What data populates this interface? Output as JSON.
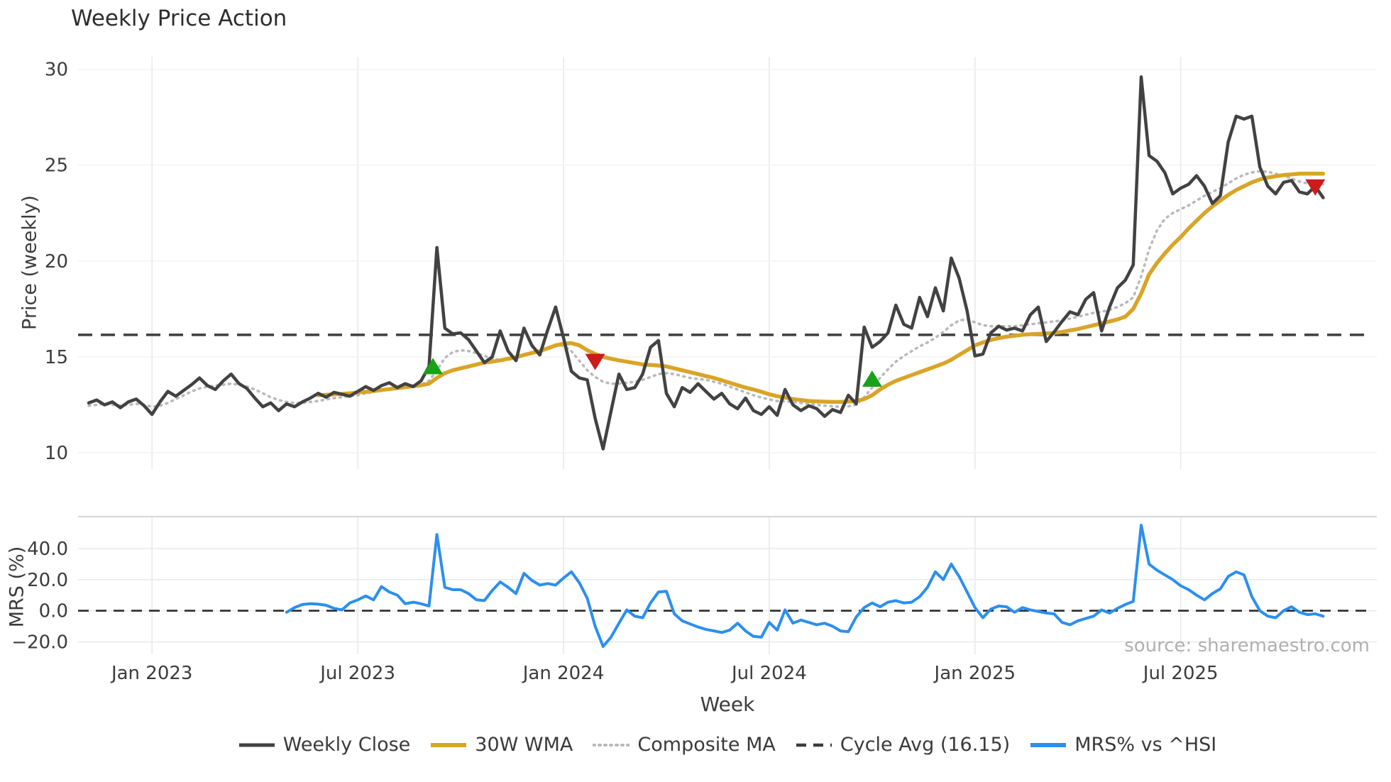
{
  "figure": {
    "title": "Weekly Price Action",
    "x_axis_label": "Week",
    "price_axis_label": "Price (weekly)",
    "mrs_axis_label": "MRS (%)",
    "source_note": "source: sharemaestro.com"
  },
  "colors": {
    "weekly_close": "#424242",
    "wma30": "#d9a427",
    "composite_ma": "#b9b9b9",
    "cycle_avg": "#3d3d3d",
    "mrs": "#2b8fef",
    "zero_line": "#222222",
    "buy_marker": "#17a217",
    "sell_marker": "#cd1a1a",
    "grid": "#e8e8f0",
    "grid_faint": "#f2f2f7",
    "separator": "#c9c9c9",
    "text": "#3c3c3c",
    "source_text": "#b0b0b3"
  },
  "legend": [
    {
      "label": "Weekly Close",
      "key": "weekly_close",
      "color": "#424242",
      "style": "solid"
    },
    {
      "label": "30W WMA",
      "key": "wma30",
      "color": "#d9a427",
      "style": "solid-thick"
    },
    {
      "label": "Composite MA",
      "key": "composite_ma",
      "color": "#b9b9b9",
      "style": "dotted"
    },
    {
      "label": "Cycle Avg (16.15)",
      "key": "cycle_avg",
      "color": "#3d3d3d",
      "style": "dashed"
    },
    {
      "label": "MRS% vs ^HSI",
      "key": "mrs",
      "color": "#2b8fef",
      "style": "solid-thick"
    }
  ],
  "chart_data": {
    "type": "line",
    "title": "Weekly Price Action",
    "xlabel": "Week",
    "x_unit": "weeks from Nov 2022",
    "x_ticks": [
      {
        "label": "Jan 2023",
        "week": 8
      },
      {
        "label": "Jul 2023",
        "week": 34
      },
      {
        "label": "Jan 2024",
        "week": 60
      },
      {
        "label": "Jul 2024",
        "week": 86
      },
      {
        "label": "Jan 2025",
        "week": 112
      },
      {
        "label": "Jul 2025",
        "week": 138
      }
    ],
    "price_panel": {
      "ylabel": "Price (weekly)",
      "ylim": [
        9.15,
        30.65
      ],
      "yticks": [
        {
          "label": "30",
          "value": 30
        },
        {
          "label": "25",
          "value": 25
        },
        {
          "label": "20",
          "value": 20
        },
        {
          "label": "15",
          "value": 15
        },
        {
          "label": "10",
          "value": 10
        }
      ],
      "series": [
        {
          "key": "cycle_avg",
          "name": "Cycle Avg (16.15)",
          "constant": 16.15
        },
        {
          "key": "composite_ma",
          "name": "Composite MA",
          "start_week": 0,
          "values": [
            12.45,
            12.5,
            12.55,
            12.5,
            12.45,
            12.5,
            12.55,
            12.5,
            12.4,
            12.45,
            12.6,
            12.8,
            13.0,
            13.2,
            13.35,
            13.45,
            13.5,
            13.55,
            13.6,
            13.55,
            13.45,
            13.3,
            13.1,
            12.9,
            12.75,
            12.65,
            12.6,
            12.6,
            12.65,
            12.7,
            12.78,
            12.85,
            12.9,
            12.95,
            13.0,
            13.1,
            13.17,
            13.25,
            13.3,
            13.35,
            13.4,
            13.45,
            13.55,
            13.75,
            14.3,
            14.95,
            15.25,
            15.35,
            15.3,
            15.2,
            15.05,
            14.9,
            14.85,
            14.85,
            14.95,
            15.1,
            15.25,
            15.3,
            15.4,
            15.55,
            15.6,
            15.3,
            14.8,
            14.3,
            13.95,
            13.7,
            13.6,
            13.6,
            13.65,
            13.7,
            13.8,
            13.95,
            14.1,
            14.15,
            14.1,
            14.0,
            13.9,
            13.85,
            13.8,
            13.7,
            13.6,
            13.45,
            13.3,
            13.15,
            13.0,
            12.88,
            12.78,
            12.7,
            12.68,
            12.65,
            12.6,
            12.55,
            12.5,
            12.45,
            12.42,
            12.4,
            12.42,
            12.5,
            12.9,
            13.4,
            13.9,
            14.35,
            14.75,
            15.05,
            15.3,
            15.55,
            15.75,
            16.0,
            16.3,
            16.65,
            16.9,
            16.95,
            16.8,
            16.65,
            16.6,
            16.6,
            16.6,
            16.6,
            16.65,
            16.7,
            16.75,
            16.8,
            16.85,
            16.9,
            17.0,
            17.1,
            17.2,
            17.3,
            17.35,
            17.45,
            17.6,
            17.8,
            18.1,
            19.2,
            20.6,
            21.6,
            22.2,
            22.5,
            22.7,
            22.9,
            23.15,
            23.4,
            23.6,
            23.8,
            24.05,
            24.3,
            24.5,
            24.62,
            24.68,
            24.65,
            24.55,
            24.45,
            24.3,
            24.15,
            24.05,
            24.0,
            24.0
          ]
        },
        {
          "key": "wma30",
          "name": "30W WMA",
          "start_week": 29,
          "values": [
            13.0,
            13.02,
            13.05,
            13.07,
            13.1,
            13.15,
            13.18,
            13.22,
            13.27,
            13.32,
            13.37,
            13.42,
            13.47,
            13.52,
            13.6,
            13.9,
            14.15,
            14.3,
            14.4,
            14.5,
            14.6,
            14.7,
            14.75,
            14.82,
            14.9,
            14.98,
            15.1,
            15.2,
            15.3,
            15.45,
            15.6,
            15.68,
            15.72,
            15.6,
            15.35,
            15.15,
            15.0,
            14.9,
            14.82,
            14.75,
            14.68,
            14.6,
            14.58,
            14.55,
            14.5,
            14.4,
            14.3,
            14.2,
            14.1,
            14.0,
            13.9,
            13.78,
            13.65,
            13.52,
            13.4,
            13.3,
            13.18,
            13.05,
            12.95,
            12.88,
            12.8,
            12.75,
            12.7,
            12.68,
            12.66,
            12.65,
            12.65,
            12.67,
            12.7,
            12.8,
            13.0,
            13.3,
            13.55,
            13.75,
            13.9,
            14.05,
            14.2,
            14.35,
            14.5,
            14.65,
            14.85,
            15.1,
            15.35,
            15.6,
            15.75,
            15.88,
            15.98,
            16.05,
            16.1,
            16.15,
            16.18,
            16.2,
            16.22,
            16.25,
            16.3,
            16.38,
            16.45,
            16.55,
            16.65,
            16.75,
            16.85,
            16.95,
            17.1,
            17.5,
            18.3,
            19.3,
            19.9,
            20.4,
            20.85,
            21.25,
            21.7,
            22.1,
            22.5,
            22.85,
            23.15,
            23.45,
            23.7,
            23.9,
            24.1,
            24.25,
            24.35,
            24.42,
            24.48,
            24.52,
            24.55,
            24.55,
            24.55,
            24.55
          ]
        },
        {
          "key": "weekly_close",
          "name": "Weekly Close",
          "start_week": 0,
          "values": [
            12.6,
            12.75,
            12.5,
            12.65,
            12.35,
            12.65,
            12.8,
            12.45,
            12.0,
            12.65,
            13.2,
            12.95,
            13.25,
            13.55,
            13.9,
            13.5,
            13.3,
            13.75,
            14.1,
            13.6,
            13.35,
            12.85,
            12.4,
            12.6,
            12.2,
            12.55,
            12.4,
            12.65,
            12.85,
            13.1,
            12.9,
            13.15,
            13.05,
            12.95,
            13.2,
            13.45,
            13.25,
            13.5,
            13.65,
            13.4,
            13.6,
            13.45,
            13.75,
            14.5,
            20.7,
            16.5,
            16.2,
            16.25,
            15.9,
            15.3,
            14.7,
            15.0,
            16.35,
            15.3,
            14.8,
            16.5,
            15.6,
            15.1,
            16.4,
            17.6,
            16.0,
            14.25,
            13.9,
            13.8,
            11.8,
            10.2,
            12.15,
            14.1,
            13.3,
            13.4,
            14.1,
            15.5,
            15.85,
            13.1,
            12.4,
            13.4,
            13.15,
            13.6,
            13.2,
            12.8,
            13.1,
            12.55,
            12.3,
            12.85,
            12.2,
            12.0,
            12.4,
            11.95,
            13.3,
            12.5,
            12.2,
            12.45,
            12.3,
            11.9,
            12.25,
            12.1,
            13.0,
            12.55,
            16.55,
            15.5,
            15.8,
            16.25,
            17.7,
            16.7,
            16.5,
            18.1,
            17.1,
            18.6,
            17.4,
            20.15,
            19.1,
            17.4,
            15.05,
            15.15,
            16.25,
            16.6,
            16.4,
            16.5,
            16.35,
            17.2,
            17.6,
            15.8,
            16.3,
            16.85,
            17.35,
            17.2,
            18.0,
            18.35,
            16.35,
            17.6,
            18.6,
            19.0,
            19.8,
            29.6,
            25.5,
            25.2,
            24.6,
            23.5,
            23.8,
            24.0,
            24.45,
            23.9,
            23.0,
            23.4,
            26.2,
            27.55,
            27.4,
            27.55,
            24.9,
            23.9,
            23.5,
            24.1,
            24.2,
            23.6,
            23.5,
            23.9,
            23.3
          ]
        }
      ],
      "markers": [
        {
          "week": 43.5,
          "price": 14.5,
          "type": "buy"
        },
        {
          "week": 64,
          "price": 14.75,
          "type": "sell"
        },
        {
          "week": 99,
          "price": 13.85,
          "type": "buy"
        },
        {
          "week": 155,
          "price": 23.85,
          "type": "sell"
        }
      ]
    },
    "mrs_panel": {
      "ylabel": "MRS (%)",
      "ylim": [
        -28,
        60.5
      ],
      "zero_line": 0,
      "yticks": [
        {
          "label": "40.0",
          "value": 40
        },
        {
          "label": "20.0",
          "value": 20
        },
        {
          "label": "0.0",
          "value": 0
        },
        {
          "label": "−20.0",
          "value": -20
        }
      ],
      "series": [
        {
          "key": "mrs",
          "name": "MRS% vs ^HSI",
          "start_week": 25,
          "values": [
            -1,
            2,
            4,
            4.5,
            4.2,
            3.5,
            1.5,
            0.5,
            5,
            7,
            9.5,
            7,
            15.5,
            12,
            10,
            4.5,
            5.5,
            4.5,
            3,
            49,
            15,
            13.5,
            13.5,
            11,
            7,
            6.5,
            13,
            18.5,
            15,
            11,
            24,
            19.5,
            16.5,
            17.5,
            16.5,
            21,
            25,
            18,
            8,
            -10,
            -23,
            -17,
            -8,
            0.5,
            -3.5,
            -4.5,
            5,
            12,
            12.5,
            -2,
            -6.5,
            -8.5,
            -10.5,
            -12,
            -13,
            -14,
            -12.5,
            -8,
            -13,
            -16.5,
            -17,
            -7.5,
            -12.5,
            0.5,
            -8,
            -6,
            -7.5,
            -9,
            -8,
            -10,
            -13,
            -13.5,
            -4,
            2,
            5,
            2.5,
            5.5,
            6.5,
            5,
            5.5,
            9,
            15,
            25,
            20,
            30,
            22,
            12,
            2,
            -4.5,
            1,
            3,
            2.5,
            -1,
            2,
            0.5,
            -0.5,
            -1.5,
            -2,
            -7.5,
            -9,
            -6.5,
            -5,
            -3.5,
            0.5,
            -1.5,
            1.5,
            4,
            6,
            55,
            30,
            26,
            23,
            20,
            16,
            13.5,
            10,
            7,
            11,
            14,
            22,
            25,
            23,
            9,
            0,
            -3.5,
            -4.5,
            0,
            2.5,
            -1,
            -2.5,
            -2,
            -3.5
          ]
        }
      ]
    }
  }
}
